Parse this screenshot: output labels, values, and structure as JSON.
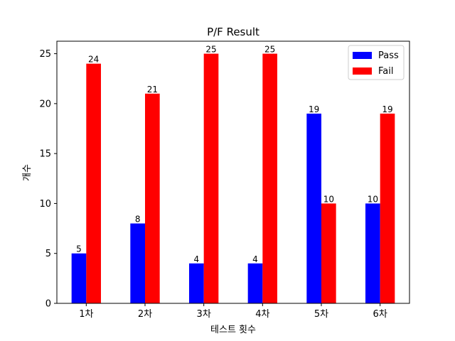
{
  "chart_data": {
    "type": "bar",
    "title": "P/F Result",
    "xlabel": "테스트 횟수",
    "ylabel": "개수",
    "categories": [
      "1차",
      "2차",
      "3차",
      "4차",
      "5차",
      "6차"
    ],
    "series": [
      {
        "name": "Pass",
        "color": "#0000ff",
        "values": [
          5,
          8,
          4,
          4,
          19,
          10
        ]
      },
      {
        "name": "Fail",
        "color": "#ff0000",
        "values": [
          24,
          21,
          25,
          25,
          10,
          19
        ]
      }
    ],
    "ylim": [
      0,
      26.25
    ],
    "yticks": [
      0,
      5,
      10,
      15,
      20,
      25
    ],
    "legend": "top-right",
    "grid": false
  }
}
